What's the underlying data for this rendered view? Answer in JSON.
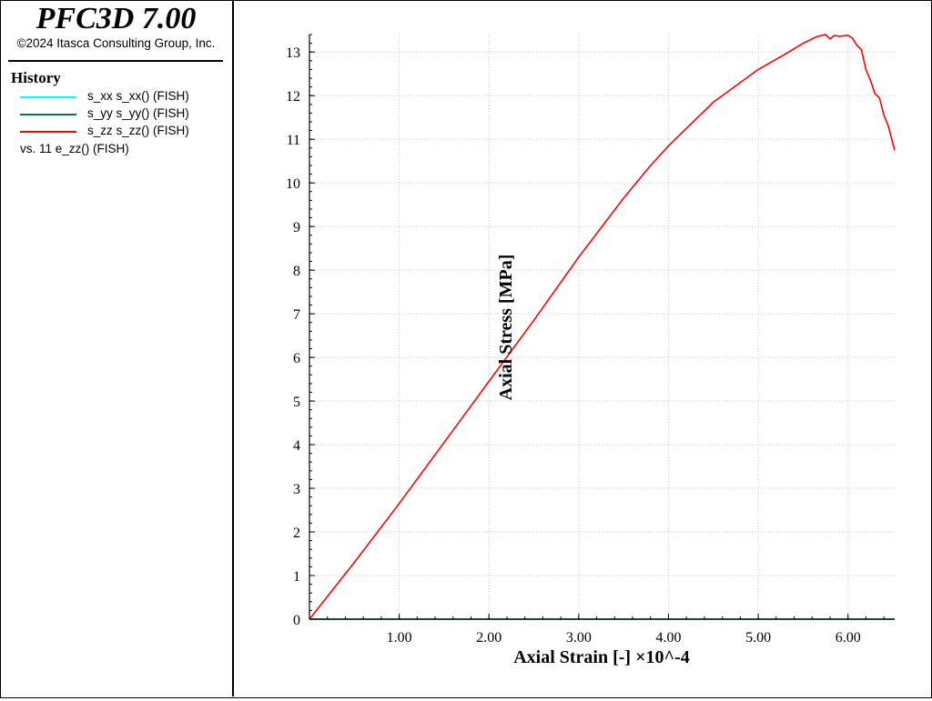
{
  "app": {
    "title": "PFC3D 7.00",
    "copyright": "©2024 Itasca Consulting Group, Inc."
  },
  "legend": {
    "header": "History",
    "items": [
      {
        "label": "s_xx s_xx() (FISH)",
        "color": "#00ffff"
      },
      {
        "label": "s_yy s_yy() (FISH)",
        "color": "#007f3f"
      },
      {
        "label": "s_zz s_zz() (FISH)",
        "color": "#ff0000"
      }
    ],
    "vs_label": "vs. 11 e_zz() (FISH)"
  },
  "chart_data": {
    "type": "line",
    "xlabel": "Axial Strain [-] ×10^-4",
    "ylabel": "Axial Stress [MPa]",
    "xlim": [
      0,
      6.52
    ],
    "ylim": [
      0,
      13.4
    ],
    "x_ticks": [
      1.0,
      2.0,
      3.0,
      4.0,
      5.0,
      6.0
    ],
    "x_tick_labels": [
      "1.00",
      "2.00",
      "3.00",
      "4.00",
      "5.00",
      "6.00"
    ],
    "y_ticks": [
      0,
      1,
      2,
      3,
      4,
      5,
      6,
      7,
      8,
      9,
      10,
      11,
      12,
      13
    ],
    "y_tick_labels": [
      "0",
      "1",
      "2",
      "3",
      "4",
      "5",
      "6",
      "7",
      "8",
      "9",
      "10",
      "11",
      "12",
      "13"
    ],
    "grid": true,
    "series": [
      {
        "name": "s_xx s_xx() (FISH)",
        "color": "#00ffff",
        "x": [
          0,
          6.52
        ],
        "y": [
          0,
          0
        ]
      },
      {
        "name": "s_yy s_yy() (FISH)",
        "color": "#007f3f",
        "x": [
          0,
          6.52
        ],
        "y": [
          0,
          0
        ]
      },
      {
        "name": "s_zz s_zz() (FISH)",
        "color": "#ff0000",
        "x": [
          0,
          0.5,
          1.0,
          1.5,
          2.0,
          2.5,
          3.0,
          3.5,
          3.8,
          4.0,
          4.5,
          5.0,
          5.3,
          5.5,
          5.65,
          5.75,
          5.8,
          5.85,
          5.9,
          6.0,
          6.05,
          6.1,
          6.15,
          6.2,
          6.25,
          6.3,
          6.35,
          6.4,
          6.45,
          6.5,
          6.52
        ],
        "y": [
          0,
          1.3,
          2.65,
          4.05,
          5.45,
          6.85,
          8.3,
          9.65,
          10.4,
          10.85,
          11.85,
          12.6,
          12.95,
          13.2,
          13.35,
          13.4,
          13.3,
          13.38,
          13.36,
          13.38,
          13.32,
          13.15,
          13.05,
          12.6,
          12.35,
          12.05,
          11.95,
          11.55,
          11.3,
          10.9,
          10.75
        ]
      }
    ]
  }
}
